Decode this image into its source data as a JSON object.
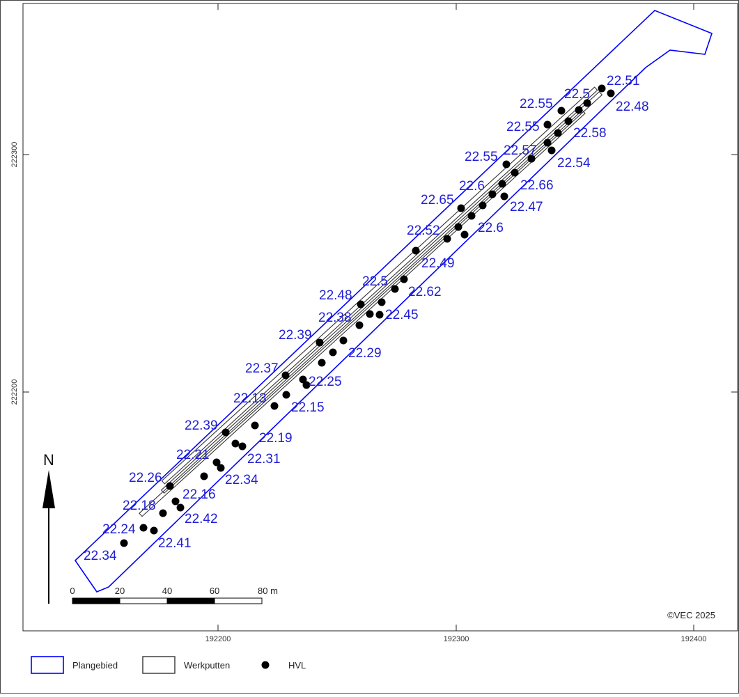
{
  "axes": {
    "x_ticks": [
      "192200",
      "192300",
      "192400"
    ],
    "y_ticks": [
      "222300",
      "222200"
    ]
  },
  "north_label": "N",
  "scale_bar": {
    "labels": [
      "0",
      "20",
      "40",
      "60",
      "80 m"
    ]
  },
  "copyright": "©VEC 2025",
  "legend": [
    {
      "label": "Plangebied",
      "symbol": "blue-outline-box"
    },
    {
      "label": "Werkputten",
      "symbol": "black-outline-box"
    },
    {
      "label": "HVL",
      "symbol": "black-dot"
    }
  ],
  "colors": {
    "plangebied": "#0000ff",
    "werkputten": "#333333",
    "hvl": "#000000",
    "labels": "#1f1fd6"
  },
  "hvl_labels": [
    "22.51",
    "22.5",
    "22.55",
    "22.48",
    "22.55",
    "22.58",
    "22.57",
    "22.55",
    "22.54",
    "22.6",
    "22.66",
    "22.65",
    "22.47",
    "22.52",
    "22.6",
    "22.49",
    "22.5",
    "22.48",
    "22.62",
    "22.38",
    "22.45",
    "22.39",
    "22.29",
    "22.37",
    "22.25",
    "22.13",
    "22.15",
    "22.39",
    "22.19",
    "22.21",
    "22.31",
    "22.26",
    "22.34",
    "22.16",
    "22.18",
    "22.42",
    "22.24",
    "22.41",
    "22.34"
  ]
}
